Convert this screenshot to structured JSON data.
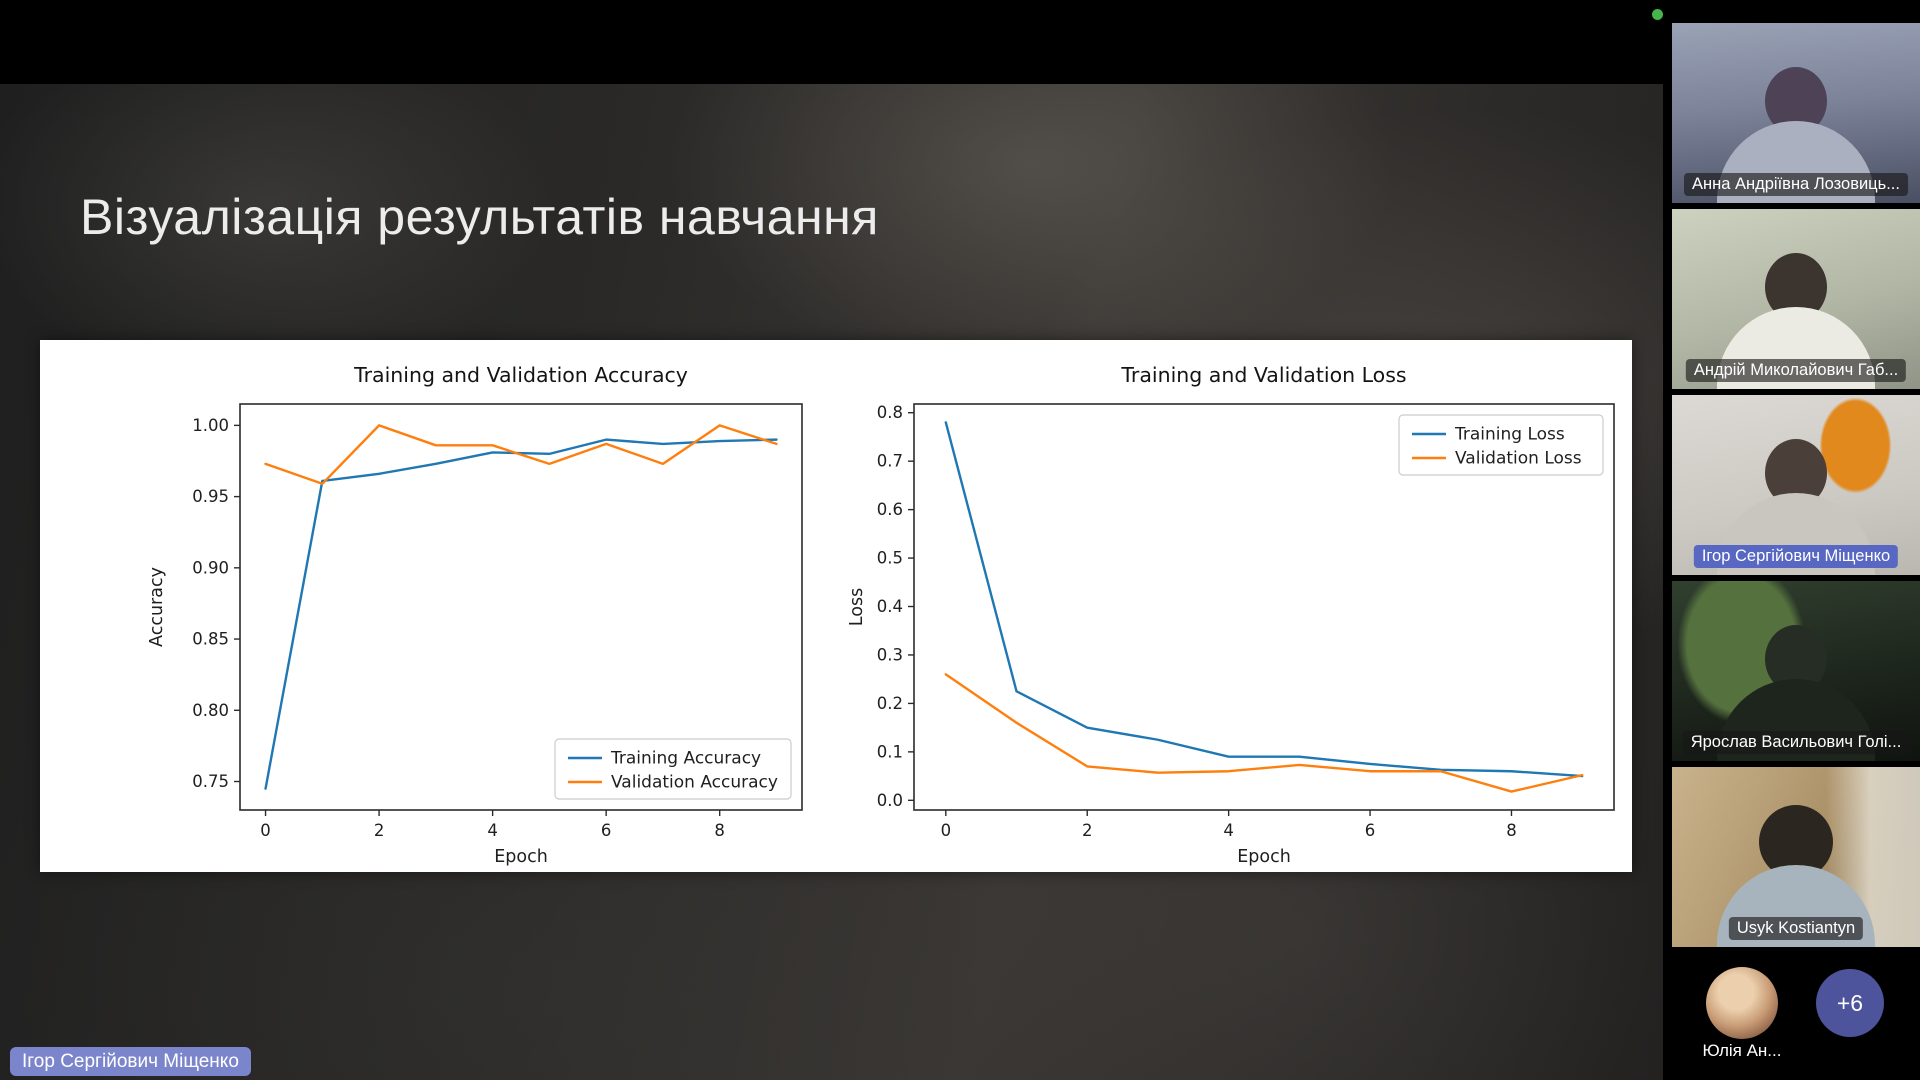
{
  "slide": {
    "title": "Візуалізація результатів навчання"
  },
  "meeting": {
    "presenter_label": "Ігор Сергійович Міщенко",
    "overflow_badge": "+6",
    "status_dot_color": "#45b649",
    "active_label_color": "#5767c2",
    "participants": [
      {
        "name": "Анна Андріївна Лозовиць...",
        "active": false
      },
      {
        "name": "Андрій Миколайович Габ...",
        "active": false
      },
      {
        "name": "Ігор Сергійович Міщенко",
        "active": true
      },
      {
        "name": "Ярослав Васильович Голі...",
        "active": false
      },
      {
        "name": "Usyk Kostiantyn",
        "active": false
      },
      {
        "name": "Юлія Ан...",
        "active": false
      }
    ]
  },
  "chart_data": [
    {
      "type": "line",
      "title": "Training and Validation Accuracy",
      "xlabel": "Epoch",
      "ylabel": "Accuracy",
      "x": [
        0,
        1,
        2,
        3,
        4,
        5,
        6,
        7,
        8,
        9
      ],
      "series": [
        {
          "name": "Training Accuracy",
          "color": "#1f77b4",
          "values": [
            0.745,
            0.961,
            0.966,
            0.973,
            0.981,
            0.98,
            0.99,
            0.987,
            0.989,
            0.99
          ]
        },
        {
          "name": "Validation Accuracy",
          "color": "#ff7f0e",
          "values": [
            0.973,
            0.959,
            1.0,
            0.986,
            0.986,
            0.973,
            0.987,
            0.973,
            1.0,
            0.987
          ]
        }
      ],
      "xlim": [
        -0.45,
        9.45
      ],
      "ylim": [
        0.73,
        1.015
      ],
      "xticks": [
        0,
        2,
        4,
        6,
        8
      ],
      "xtick_labels": [
        "0",
        "2",
        "4",
        "6",
        "8"
      ],
      "yticks": [
        0.75,
        0.8,
        0.85,
        0.9,
        0.95,
        1.0
      ],
      "ytick_labels": [
        "0.75",
        "0.80",
        "0.85",
        "0.90",
        "0.95",
        "1.00"
      ],
      "legend_loc": "lower right",
      "grid": false
    },
    {
      "type": "line",
      "title": "Training and Validation Loss",
      "xlabel": "Epoch",
      "ylabel": "Loss",
      "x": [
        0,
        1,
        2,
        3,
        4,
        5,
        6,
        7,
        8,
        9
      ],
      "series": [
        {
          "name": "Training Loss",
          "color": "#1f77b4",
          "values": [
            0.78,
            0.225,
            0.15,
            0.125,
            0.09,
            0.09,
            0.075,
            0.063,
            0.06,
            0.05
          ]
        },
        {
          "name": "Validation Loss",
          "color": "#ff7f0e",
          "values": [
            0.26,
            0.16,
            0.07,
            0.057,
            0.06,
            0.073,
            0.06,
            0.06,
            0.018,
            0.052
          ]
        }
      ],
      "xlim": [
        -0.45,
        9.45
      ],
      "ylim": [
        -0.02,
        0.818
      ],
      "xticks": [
        0,
        2,
        4,
        6,
        8
      ],
      "xtick_labels": [
        "0",
        "2",
        "4",
        "6",
        "8"
      ],
      "yticks": [
        0.0,
        0.1,
        0.2,
        0.3,
        0.4,
        0.5,
        0.6,
        0.7,
        0.8
      ],
      "ytick_labels": [
        "0.0",
        "0.1",
        "0.2",
        "0.3",
        "0.4",
        "0.5",
        "0.6",
        "0.7",
        "0.8"
      ],
      "legend_loc": "upper right",
      "grid": false
    }
  ]
}
